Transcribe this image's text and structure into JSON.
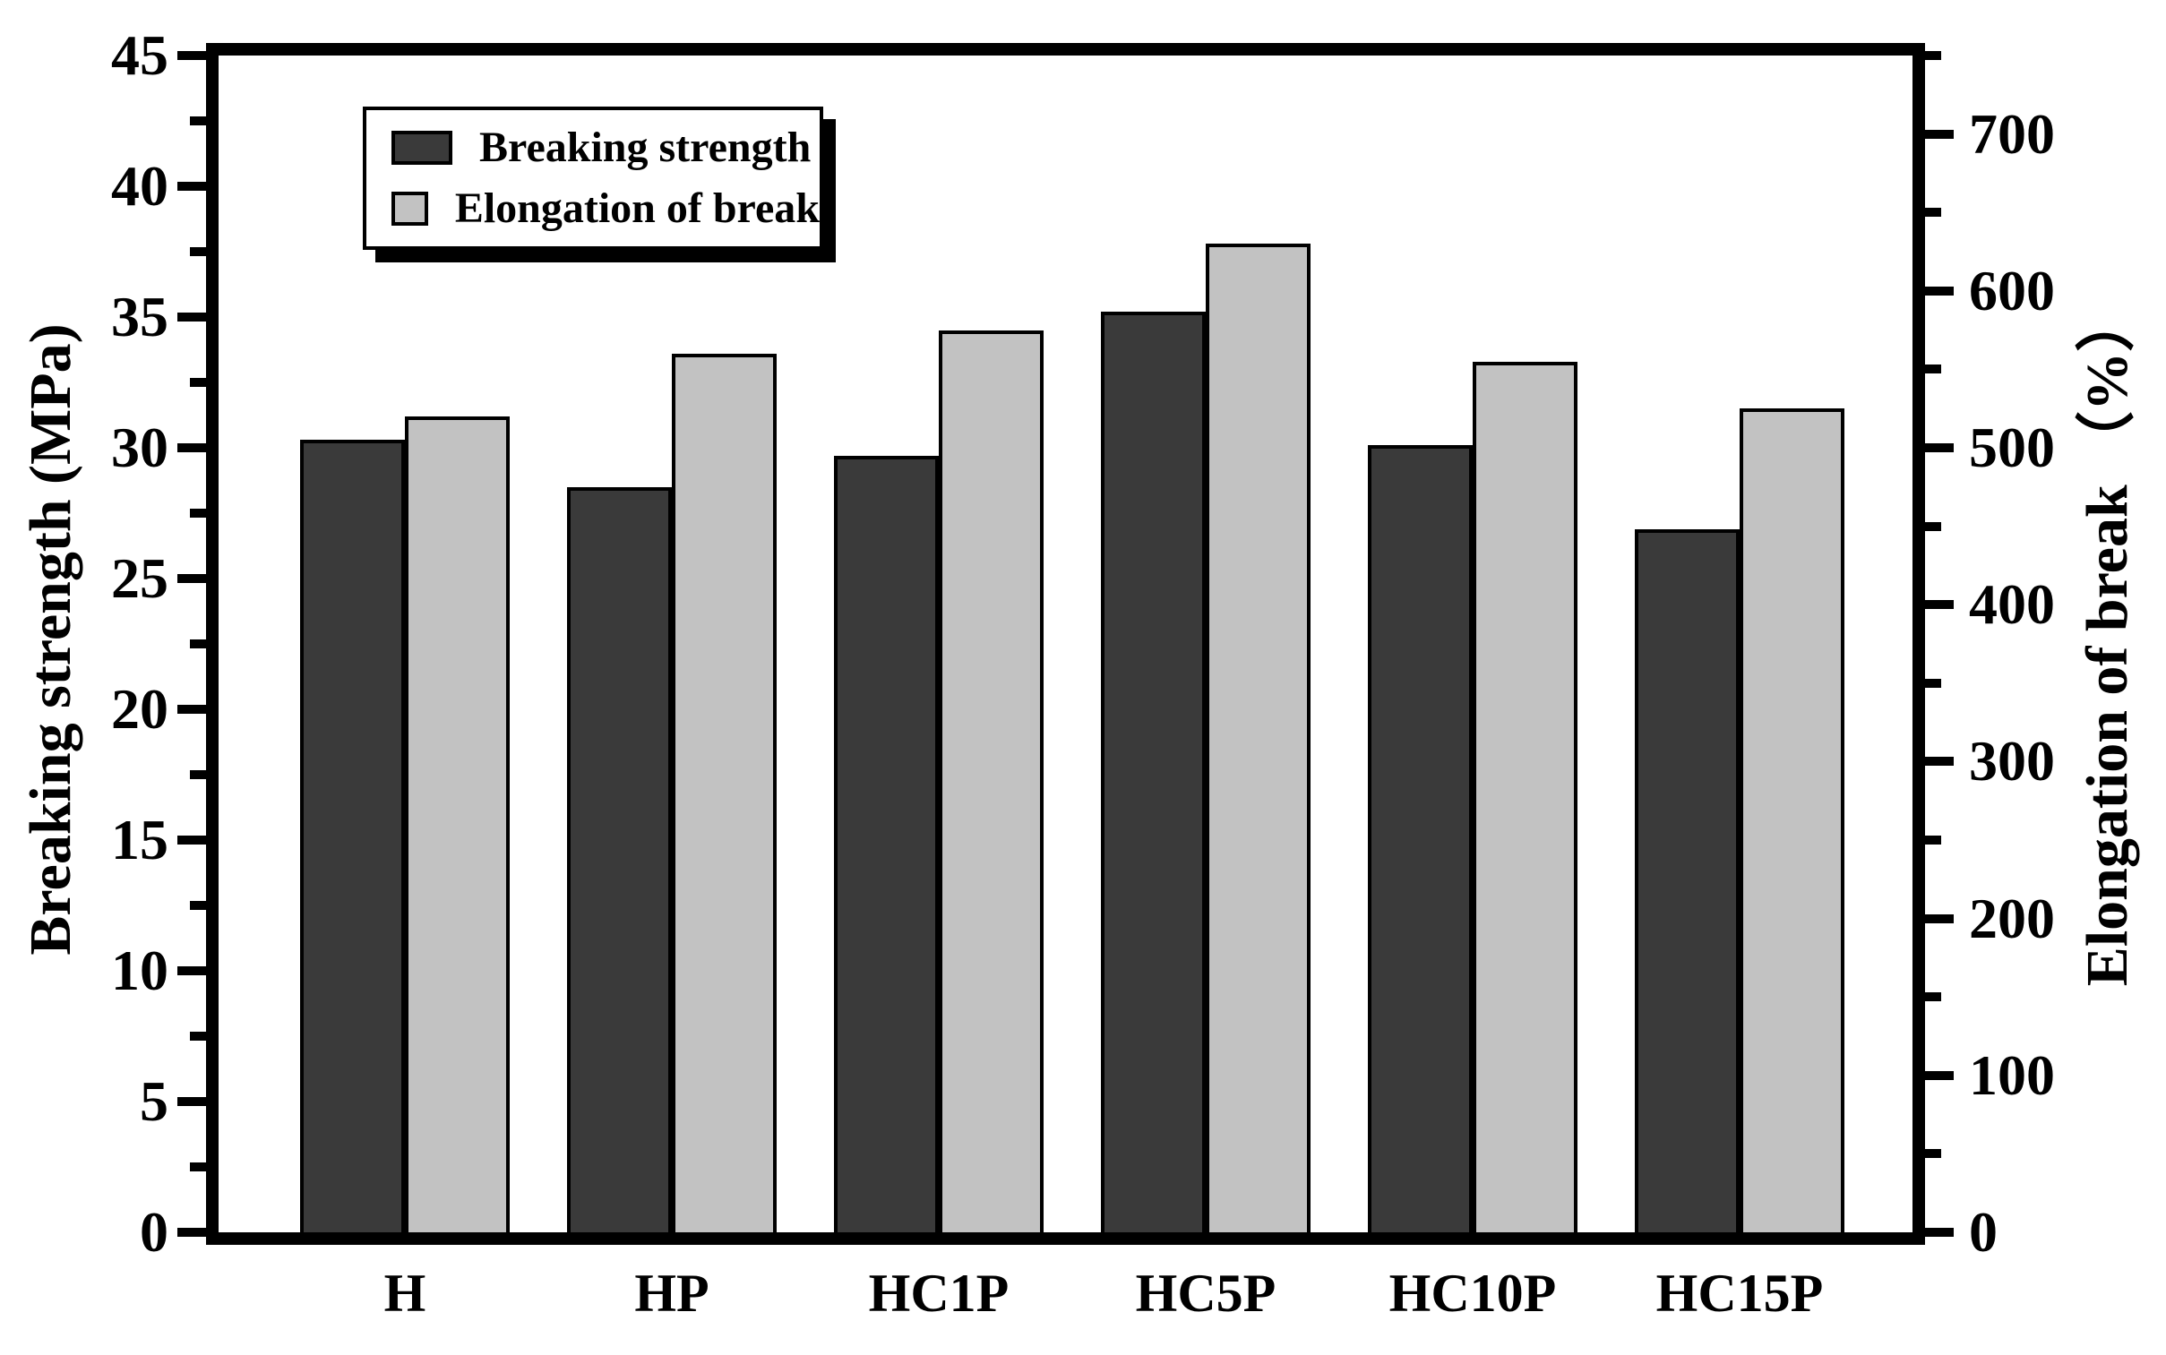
{
  "figure": {
    "background": "#ffffff",
    "bar_outline_color": "#000000"
  },
  "chart_data": {
    "type": "bar",
    "title": "",
    "grid": false,
    "legend_position": "upper-left-inside",
    "categories": [
      "H",
      "HP",
      "HC1P",
      "HC5P",
      "HC10P",
      "HC15P"
    ],
    "series": [
      {
        "name": "Breaking strength",
        "axis": "left",
        "color": "#3a3a3a",
        "values": [
          30.3,
          28.5,
          29.7,
          35.2,
          30.1,
          26.9
        ]
      },
      {
        "name": "Elongation of break",
        "axis": "right",
        "color": "#c2c2c2",
        "values": [
          520,
          560,
          575,
          630,
          555,
          525
        ]
      }
    ],
    "left_axis": {
      "label": "Breaking strength (MPa)",
      "min": 0,
      "max": 45,
      "major_step": 5,
      "minor_step": 2.5,
      "tick_labels": [
        0,
        5,
        10,
        15,
        20,
        25,
        30,
        35,
        40,
        45
      ]
    },
    "right_axis": {
      "label": "Elongation of break （%）",
      "min": 0,
      "max": 750,
      "major_step": 100,
      "minor_step": 50,
      "tick_labels": [
        0,
        100,
        200,
        300,
        400,
        500,
        600,
        700
      ]
    }
  }
}
